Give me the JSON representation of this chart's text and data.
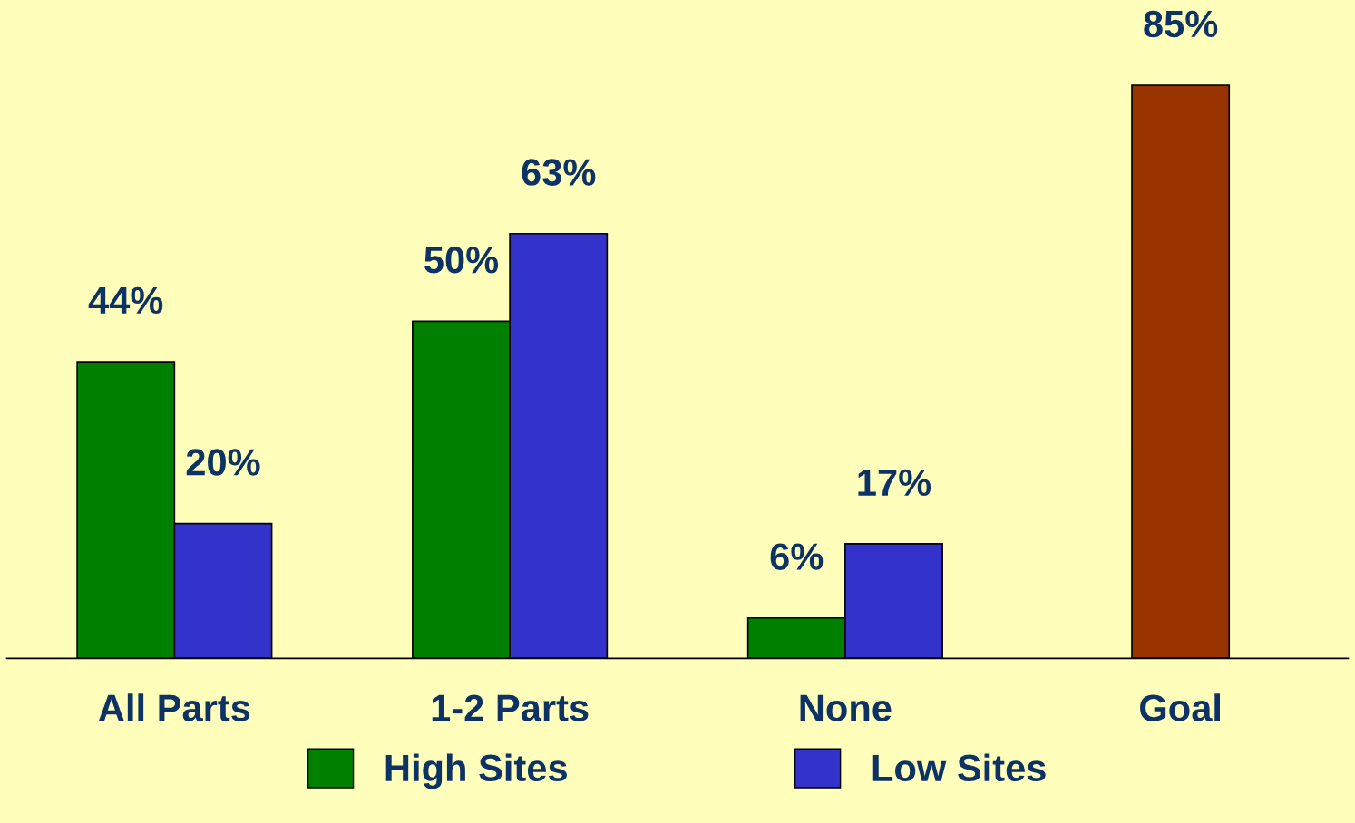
{
  "chart_data": {
    "type": "bar",
    "categories": [
      "All Parts",
      "1-2 Parts",
      "None",
      "Goal"
    ],
    "series": [
      {
        "name": "High Sites",
        "color": "#008000",
        "values": [
          44,
          50,
          6,
          null
        ],
        "value_labels": [
          "44%",
          "50%",
          "6%",
          null
        ]
      },
      {
        "name": "Low Sites",
        "color": "#3333cc",
        "values": [
          20,
          63,
          17,
          null
        ],
        "value_labels": [
          "20%",
          "63%",
          "17%",
          null
        ]
      },
      {
        "color": "#993300",
        "values": [
          null,
          null,
          null,
          85
        ],
        "value_labels": [
          null,
          null,
          null,
          "85%"
        ]
      }
    ],
    "tick_labels": "x",
    "grid": false,
    "legend": "bottom"
  }
}
